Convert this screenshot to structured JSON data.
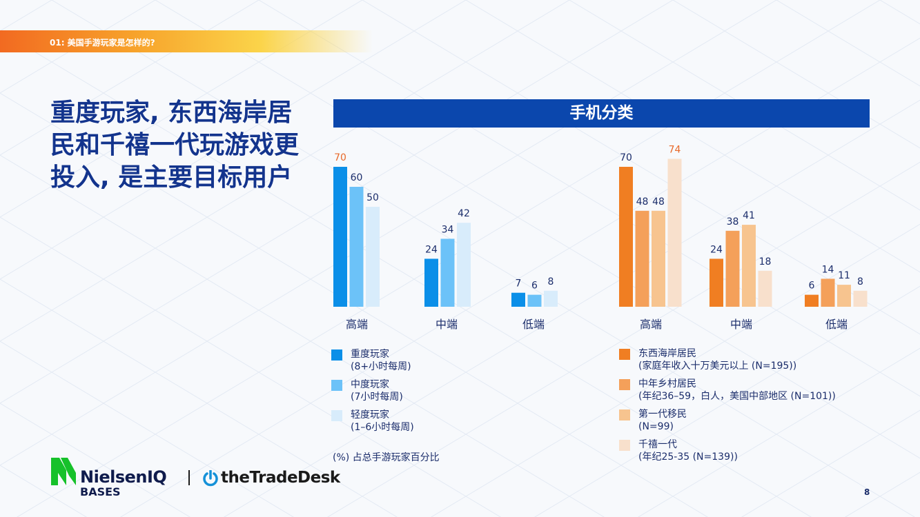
{
  "section_tag": "01: 美国手游玩家是怎样的?",
  "headline": "重度玩家, 东西海岸居民和千禧一代玩游戏更投入, 是主要目标用户",
  "chart_data": [
    {
      "type": "bar",
      "title": "手机分类",
      "categories": [
        "高端",
        "中端",
        "低端"
      ],
      "series": [
        {
          "name": "重度玩家 (8+小时每周)",
          "values": [
            70,
            24,
            7
          ],
          "color": "#0b8fe8"
        },
        {
          "name": "中度玩家 (7小时每周)",
          "values": [
            60,
            34,
            6
          ],
          "color": "#6cc2f8"
        },
        {
          "name": "轻度玩家 (1–6小时每周)",
          "values": [
            50,
            42,
            8
          ],
          "color": "#d8ecfb"
        }
      ],
      "ylim": [
        0,
        80
      ]
    },
    {
      "type": "bar",
      "title": "手机分类",
      "categories": [
        "高端",
        "中端",
        "低端"
      ],
      "series": [
        {
          "name": "东西海岸居民 (家庭年收入十万美元以上 (N=195))",
          "values": [
            70,
            24,
            6
          ],
          "color": "#f07e22"
        },
        {
          "name": "中年乡村居民 (年纪36–59，白人，美国中部地区 (N=101))",
          "values": [
            48,
            38,
            14
          ],
          "color": "#f4a05a"
        },
        {
          "name": "第一代移民 (N=99)",
          "values": [
            48,
            41,
            11
          ],
          "color": "#f7c48f"
        },
        {
          "name": "千禧一代 (年纪25-35 (N=139))",
          "values": [
            74,
            18,
            8
          ],
          "color": "#f8e0cc"
        }
      ],
      "ylim": [
        0,
        80
      ]
    }
  ],
  "colors": {
    "highlight_label": "#e8692a",
    "header_bg": "#0b47ad",
    "headline": "#13348d"
  },
  "legend_left": [
    {
      "title": "重度玩家",
      "sub": "(8+小时每周)",
      "color": "#0b8fe8"
    },
    {
      "title": "中度玩家",
      "sub": "(7小时每周)",
      "color": "#6cc2f8"
    },
    {
      "title": "轻度玩家",
      "sub": "(1–6小时每周)",
      "color": "#d8ecfb"
    }
  ],
  "legend_right": [
    {
      "title": "东西海岸居民",
      "sub": "(家庭年收入十万美元以上 (N=195))",
      "color": "#f07e22"
    },
    {
      "title": "中年乡村居民",
      "sub": "(年纪36–59，白人，美国中部地区 (N=101))",
      "color": "#f4a05a"
    },
    {
      "title": "第一代移民",
      "sub": "(N=99)",
      "color": "#f7c48f"
    },
    {
      "title": "千禧一代",
      "sub": "(年纪25-35 (N=139))",
      "color": "#f8e0cc"
    }
  ],
  "note": "(%) 占总手游玩家百分比",
  "logos": {
    "nielsen_name": "NielsenIQ",
    "nielsen_sub": "BASES",
    "ttd_name": "theTradeDesk"
  },
  "page_number": "8"
}
